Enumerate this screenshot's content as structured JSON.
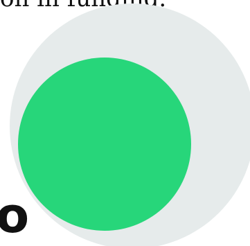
{
  "caption": {
    "text": "on in funding."
  },
  "fragment": {
    "text": "o"
  },
  "colors": {
    "outer_circle": "#e6ebeb",
    "inner_circle": "#27d67a",
    "text": "#111111",
    "background": "#ffffff"
  }
}
